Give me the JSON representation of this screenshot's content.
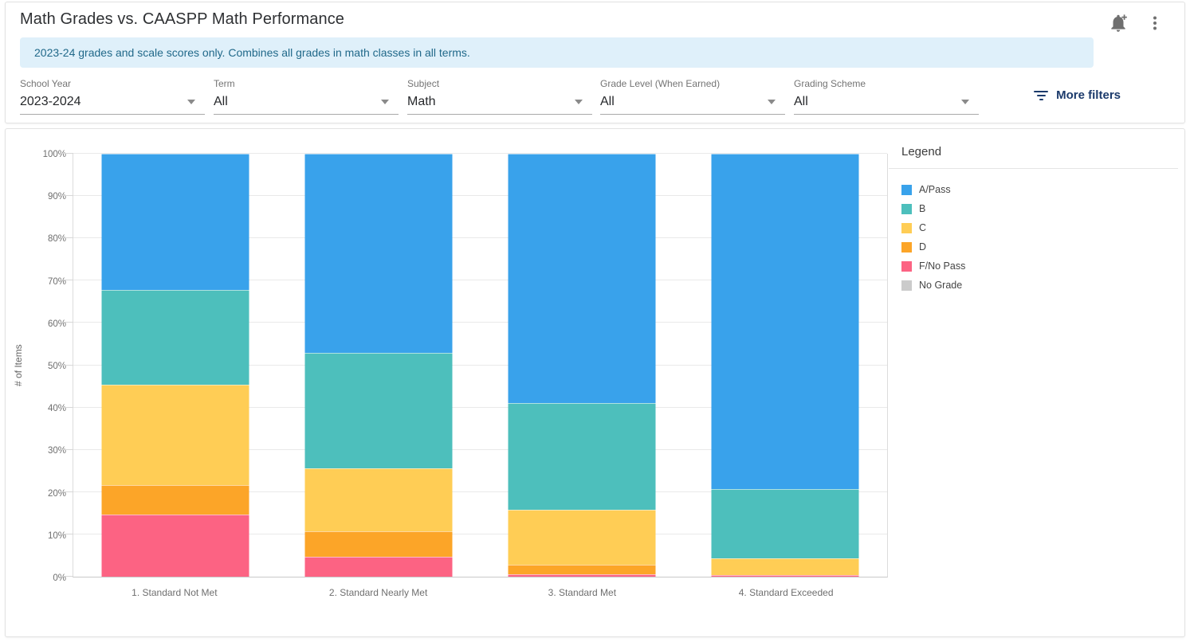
{
  "header": {
    "title": "Math Grades vs. CAASPP Math Performance",
    "banner": "2023-24 grades and scale scores only. Combines all grades in math classes in all terms.",
    "icons": [
      "bell-plus-icon",
      "kebab-menu-icon"
    ]
  },
  "filters": {
    "items": [
      {
        "label": "School Year",
        "value": "2023-2024"
      },
      {
        "label": "Term",
        "value": "All"
      },
      {
        "label": "Subject",
        "value": "Math"
      },
      {
        "label": "Grade Level (When Earned)",
        "value": "All"
      },
      {
        "label": "Grading Scheme",
        "value": "All"
      }
    ],
    "more_filters_label": "More filters"
  },
  "chart_data": {
    "type": "bar",
    "stacked": true,
    "stack_unit": "percent",
    "title": "",
    "xlabel": "",
    "ylabel": "# of Items",
    "ylim": [
      0,
      100
    ],
    "ytick_step": 10,
    "ytick_suffix": "%",
    "grid": true,
    "legend_position": "right",
    "legend_title": "Legend",
    "categories": [
      "1. Standard Not Met",
      "2. Standard Nearly Met",
      "3. Standard Met",
      "4. Standard Exceeded"
    ],
    "series": [
      {
        "name": "A/Pass",
        "color": "#39a2eb",
        "values": [
          32.2,
          47.0,
          59.0,
          79.2
        ]
      },
      {
        "name": "B",
        "color": "#4dbfbc",
        "values": [
          22.4,
          27.4,
          25.2,
          16.5
        ]
      },
      {
        "name": "C",
        "color": "#ffcd55",
        "values": [
          23.8,
          14.8,
          12.9,
          3.9
        ]
      },
      {
        "name": "D",
        "color": "#fca528",
        "values": [
          6.9,
          6.0,
          2.3,
          0
        ]
      },
      {
        "name": "F/No Pass",
        "color": "#fc6383",
        "values": [
          14.7,
          4.8,
          0.6,
          0.4
        ]
      },
      {
        "name": "No Grade",
        "color": "#cbcbcb",
        "values": [
          0,
          0,
          0,
          0
        ]
      }
    ]
  }
}
